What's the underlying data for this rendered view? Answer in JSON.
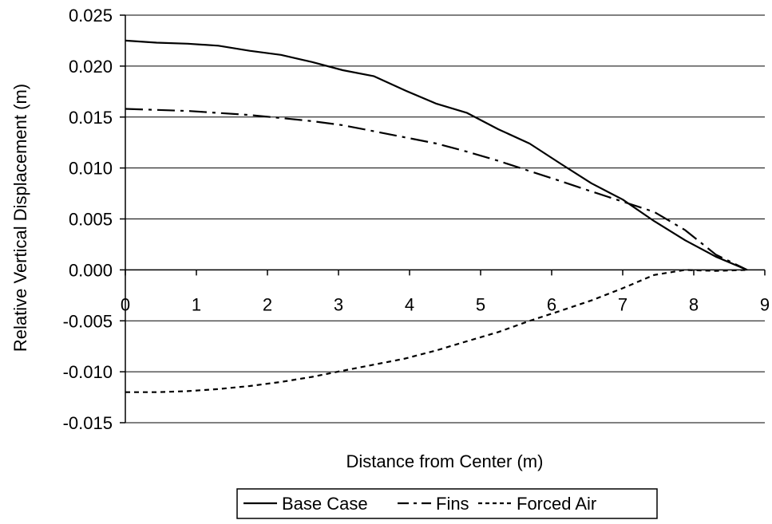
{
  "chart_data": {
    "type": "line",
    "title": "",
    "xlabel": "Distance from Center (m)",
    "ylabel": "Relative Vertical Displacement (m)",
    "xlim": [
      0,
      9
    ],
    "ylim": [
      -0.015,
      0.025
    ],
    "x_ticks": [
      0,
      1,
      2,
      3,
      4,
      5,
      6,
      7,
      8,
      9
    ],
    "x_tick_labels": [
      "0",
      "1",
      "2",
      "3",
      "4",
      "5",
      "6",
      "7",
      "8",
      "9"
    ],
    "y_ticks": [
      0.025,
      0.02,
      0.015,
      0.01,
      0.005,
      0.0,
      -0.005,
      -0.01,
      -0.015
    ],
    "y_tick_labels": [
      "0.025",
      "0.020",
      "0.015",
      "0.010",
      "0.005",
      "0.000",
      "-0.005",
      "-0.010",
      "-0.015"
    ],
    "grid": "horizontal",
    "legend_position": "bottom",
    "series": [
      {
        "name": "Base Case",
        "style": "solid",
        "color": "#000000",
        "points": [
          [
            0.0,
            0.0225
          ],
          [
            0.44,
            0.0223
          ],
          [
            0.88,
            0.0222
          ],
          [
            1.31,
            0.022
          ],
          [
            1.75,
            0.0215
          ],
          [
            2.19,
            0.0211
          ],
          [
            2.63,
            0.0204
          ],
          [
            3.06,
            0.0196
          ],
          [
            3.5,
            0.019
          ],
          [
            3.94,
            0.0176
          ],
          [
            4.38,
            0.0163
          ],
          [
            4.81,
            0.0154
          ],
          [
            5.25,
            0.0138
          ],
          [
            5.69,
            0.0124
          ],
          [
            6.13,
            0.0104
          ],
          [
            6.56,
            0.0085
          ],
          [
            7.0,
            0.0069
          ],
          [
            7.44,
            0.0048
          ],
          [
            7.88,
            0.0029
          ],
          [
            8.31,
            0.0013
          ],
          [
            8.75,
            0.0
          ]
        ]
      },
      {
        "name": "Fins",
        "style": "dash-dot",
        "color": "#000000",
        "points": [
          [
            0.0,
            0.0158
          ],
          [
            0.44,
            0.0157
          ],
          [
            0.88,
            0.0156
          ],
          [
            1.31,
            0.0154
          ],
          [
            1.75,
            0.0152
          ],
          [
            2.19,
            0.0149
          ],
          [
            2.63,
            0.0146
          ],
          [
            3.06,
            0.0142
          ],
          [
            3.5,
            0.0136
          ],
          [
            3.94,
            0.013
          ],
          [
            4.38,
            0.0124
          ],
          [
            4.81,
            0.0116
          ],
          [
            5.25,
            0.0107
          ],
          [
            5.69,
            0.0097
          ],
          [
            6.13,
            0.0087
          ],
          [
            6.56,
            0.0077
          ],
          [
            7.0,
            0.0067
          ],
          [
            7.44,
            0.0057
          ],
          [
            7.88,
            0.0039
          ],
          [
            8.31,
            0.0015
          ],
          [
            8.75,
            0.0
          ]
        ]
      },
      {
        "name": "Forced Air",
        "style": "dotted",
        "color": "#000000",
        "points": [
          [
            0.0,
            -0.012
          ],
          [
            0.44,
            -0.012
          ],
          [
            0.88,
            -0.0119
          ],
          [
            1.31,
            -0.0117
          ],
          [
            1.75,
            -0.0114
          ],
          [
            2.19,
            -0.011
          ],
          [
            2.63,
            -0.0105
          ],
          [
            3.06,
            -0.0099
          ],
          [
            3.5,
            -0.0093
          ],
          [
            3.94,
            -0.0087
          ],
          [
            4.38,
            -0.0079
          ],
          [
            4.81,
            -0.007
          ],
          [
            5.25,
            -0.0061
          ],
          [
            5.69,
            -0.005
          ],
          [
            6.13,
            -0.004
          ],
          [
            6.56,
            -0.003
          ],
          [
            7.0,
            -0.0018
          ],
          [
            7.44,
            -0.0005
          ],
          [
            7.88,
            0.0
          ],
          [
            8.31,
            -0.0001
          ],
          [
            8.75,
            0.0
          ]
        ]
      }
    ]
  }
}
